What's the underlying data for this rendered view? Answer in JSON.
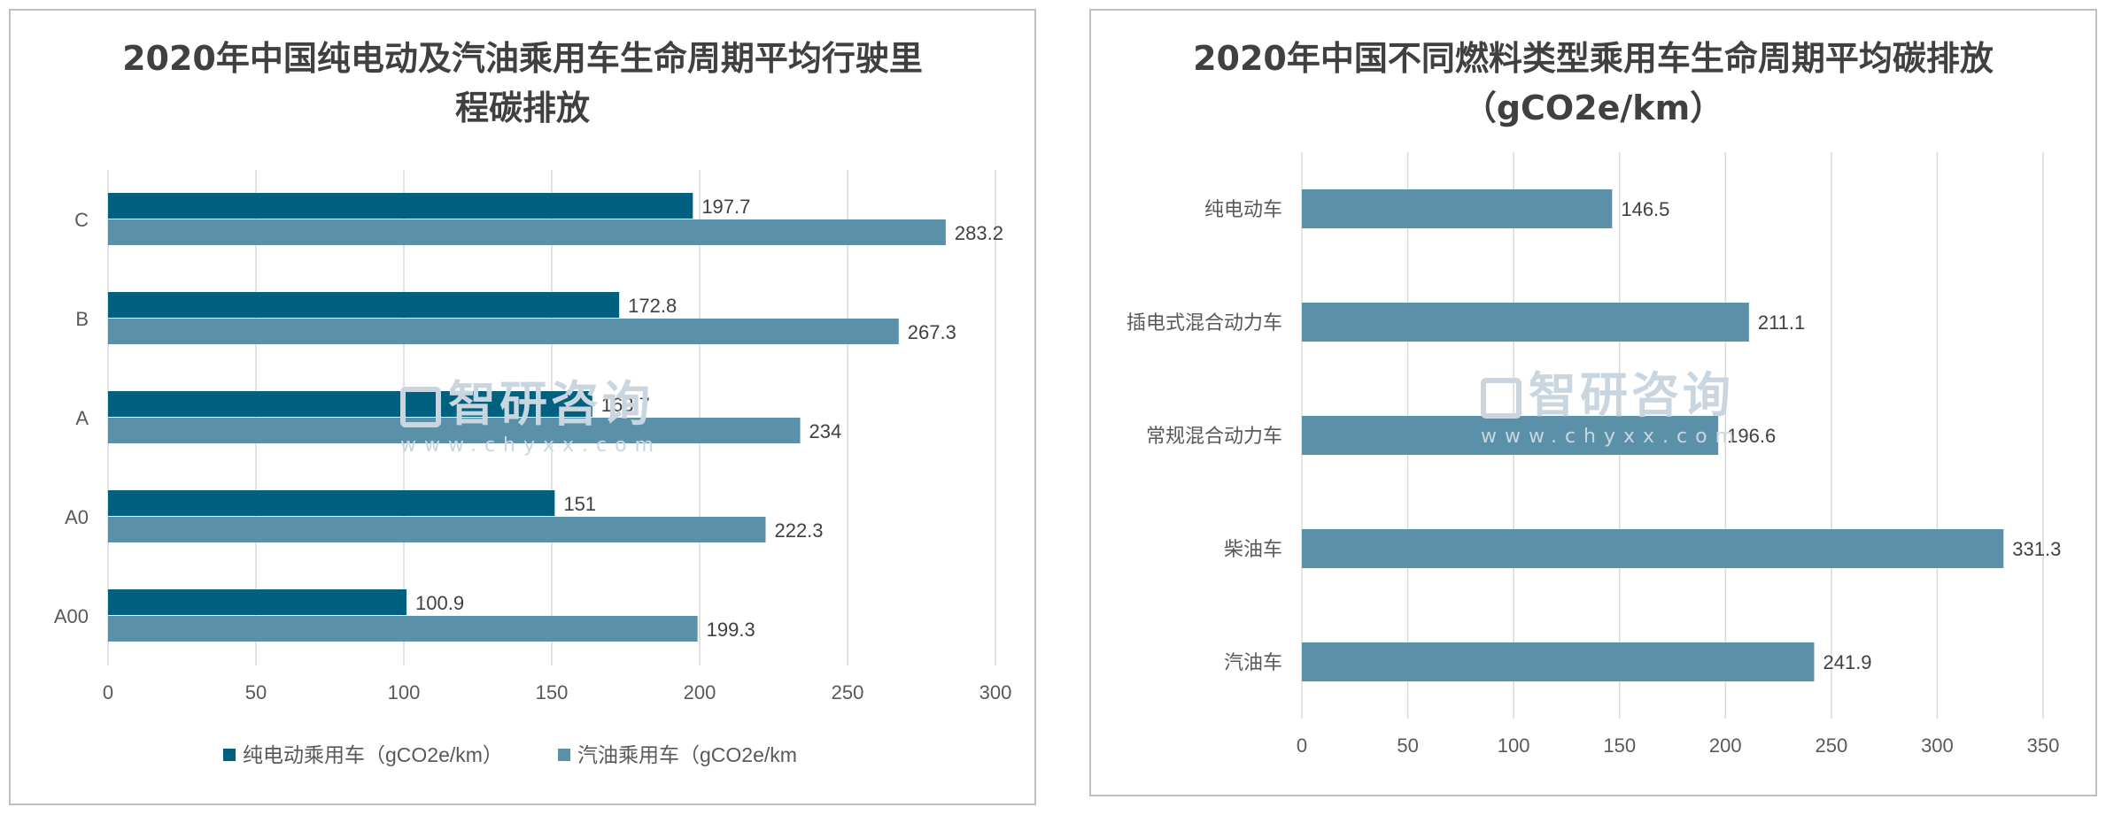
{
  "chart_data": [
    {
      "type": "bar",
      "orientation": "horizontal",
      "title_line1": "2020年中国纯电动及汽油乘用车生命周期平均行驶里",
      "title_line2": "程碳排放",
      "categories": [
        "C",
        "B",
        "A",
        "A0",
        "A00"
      ],
      "series": [
        {
          "name": "纯电动乘用车（gCO2e/km）",
          "values": [
            197.7,
            172.8,
            163.7,
            151,
            100.9
          ],
          "color": "#00607f"
        },
        {
          "name": "汽油乘用车（gCO2e/km",
          "values": [
            283.2,
            267.3,
            234,
            222.3,
            199.3
          ],
          "color": "#5b91a8"
        }
      ],
      "value_labels": [
        [
          "197.7",
          "172.8",
          "163.7",
          "151",
          "100.9"
        ],
        [
          "283.2",
          "267.3",
          "234",
          "222.3",
          "199.3"
        ]
      ],
      "xlim": [
        0,
        300
      ],
      "xticks": [
        "0",
        "50",
        "100",
        "150",
        "200",
        "250",
        "300"
      ],
      "grid": true,
      "legend_position": "bottom"
    },
    {
      "type": "bar",
      "orientation": "horizontal",
      "title_line1": "2020年中国不同燃料类型乘用车生命周期平均碳排放",
      "title_line2": "（gCO2e/km）",
      "categories": [
        "纯电动车",
        "插电式混合动力车",
        "常规混合动力车",
        "柴油车",
        "汽油车"
      ],
      "series": [
        {
          "values": [
            146.5,
            211.1,
            196.6,
            331.3,
            241.9
          ],
          "color": "#5b91a8"
        }
      ],
      "value_labels": [
        [
          "146.5",
          "211.1",
          "196.6",
          "331.3",
          "241.9"
        ]
      ],
      "xlim": [
        0,
        350
      ],
      "xticks": [
        "0",
        "50",
        "100",
        "150",
        "200",
        "250",
        "300",
        "350"
      ],
      "grid": true
    }
  ],
  "watermark": {
    "text": "智研咨询",
    "url": "www.chyxx.com"
  }
}
